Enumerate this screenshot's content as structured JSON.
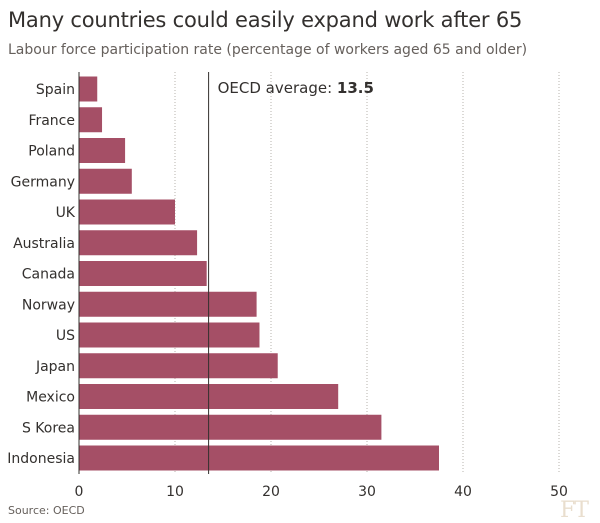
{
  "title": "Many countries could easily expand work after 65",
  "subtitle": "Labour force participation rate (percentage of workers aged 65 and older)",
  "source": "Source: OECD",
  "logo_text": "FT",
  "colors": {
    "bar": "#a54f66",
    "average_line": "#33302e",
    "grid": "#b7b3ae",
    "text": "#33302e",
    "logo": "#e9dece"
  },
  "chart_data": {
    "type": "bar",
    "orientation": "horizontal",
    "title": "Many countries could easily expand work after 65",
    "xlabel": "",
    "ylabel": "",
    "xlim": [
      0,
      50
    ],
    "xticks": [
      "0",
      "10",
      "20",
      "30",
      "40",
      "50"
    ],
    "xtick_values": [
      0,
      10,
      20,
      30,
      40,
      50
    ],
    "grid": true,
    "categories": [
      "Spain",
      "France",
      "Poland",
      "Germany",
      "UK",
      "Australia",
      "Canada",
      "Norway",
      "US",
      "Japan",
      "Mexico",
      "S Korea",
      "Indonesia"
    ],
    "values": [
      1.9,
      2.4,
      4.8,
      5.5,
      10.0,
      12.3,
      13.3,
      18.5,
      18.8,
      20.7,
      27.0,
      31.5,
      37.5
    ],
    "reference_line": {
      "value": 13.5,
      "label_prefix": "OECD average: ",
      "label_value": "13.5"
    }
  }
}
